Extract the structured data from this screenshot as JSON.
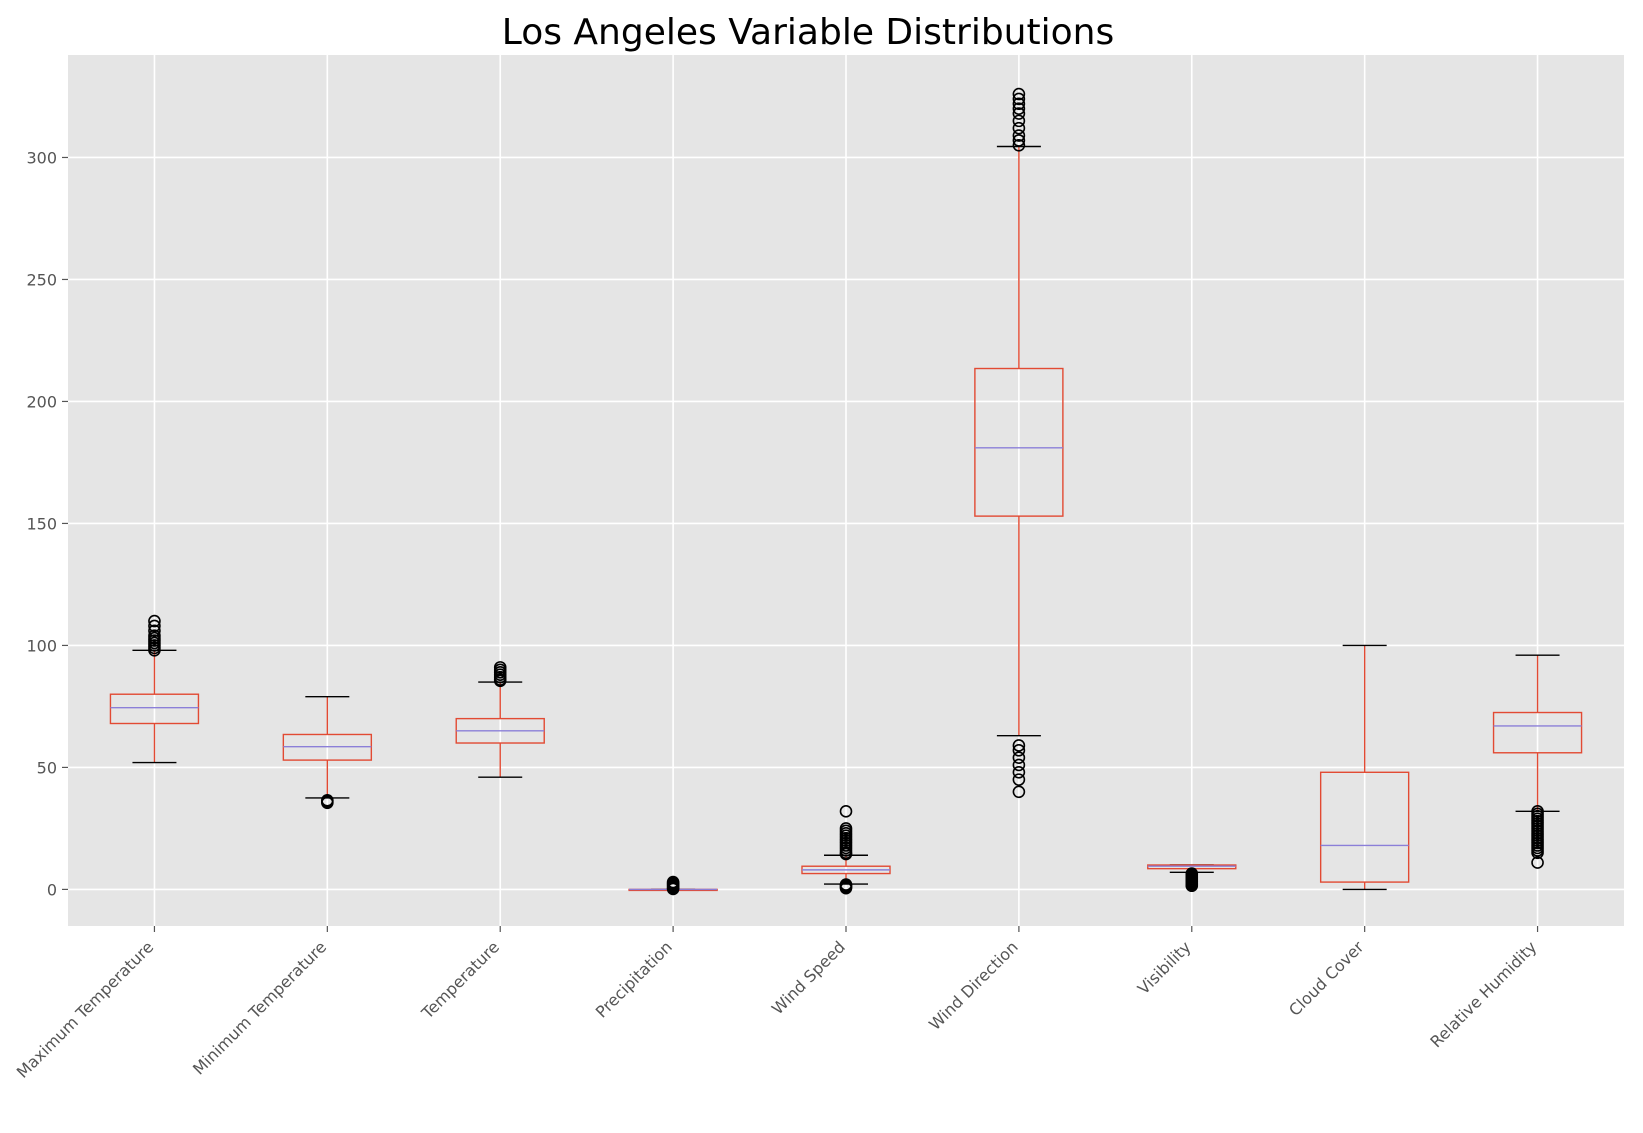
{
  "chart_data": {
    "type": "box",
    "title": "Los Angeles Variable Distributions",
    "xlabel": "",
    "ylabel": "",
    "ylim": [
      -15,
      342
    ],
    "yticks": [
      0,
      50,
      100,
      150,
      200,
      250,
      300
    ],
    "grid": true,
    "legend": "none",
    "colors": {
      "plot_background": "#e5e5e5",
      "grid": "#ffffff",
      "box": "#e24a33",
      "median": "#8b7fd8",
      "cap": "#000000",
      "flier": "#000000",
      "tick_label": "#555555"
    },
    "series": [
      {
        "category": "Maximum Temperature",
        "whisker_low": 52,
        "q1": 68,
        "median": 74.5,
        "q3": 80,
        "whisker_high": 98,
        "outliers": [
          98,
          99,
          100,
          101,
          102,
          103,
          104,
          106,
          108,
          110
        ]
      },
      {
        "category": "Minimum Temperature",
        "whisker_low": 37.5,
        "q1": 53,
        "median": 58.5,
        "q3": 63.5,
        "whisker_high": 79,
        "outliers": [
          35.5,
          36,
          36.5
        ]
      },
      {
        "category": "Temperature",
        "whisker_low": 46,
        "q1": 60,
        "median": 65,
        "q3": 70,
        "whisker_high": 85,
        "outliers": [
          85.5,
          86,
          87,
          88,
          89,
          90,
          91
        ]
      },
      {
        "category": "Precipitation",
        "whisker_low": 0,
        "q1": 0,
        "median": 0,
        "q3": 0,
        "whisker_high": 0,
        "outliers": [
          0.2,
          0.5,
          1,
          1.5,
          2,
          2.5,
          3
        ]
      },
      {
        "category": "Wind Speed",
        "whisker_low": 2.2,
        "q1": 6.5,
        "median": 8,
        "q3": 9.5,
        "whisker_high": 14,
        "outliers": [
          0.5,
          1,
          1.5,
          2,
          14.5,
          15,
          16,
          17,
          18,
          19,
          20,
          21,
          22,
          23,
          24,
          25,
          32
        ]
      },
      {
        "category": "Wind Direction",
        "whisker_low": 63,
        "q1": 153,
        "median": 181,
        "q3": 213.5,
        "whisker_high": 304.5,
        "outliers": [
          40,
          45,
          48,
          51,
          54,
          57,
          59,
          305,
          307,
          309,
          312,
          315,
          318,
          320,
          322,
          324,
          326
        ]
      },
      {
        "category": "Visibility",
        "whisker_low": 7,
        "q1": 8.5,
        "median": 9.5,
        "q3": 10,
        "whisker_high": 10,
        "outliers": [
          1.5,
          2,
          2.5,
          3,
          3.5,
          4,
          4.5,
          5,
          5.5,
          6,
          6.5
        ]
      },
      {
        "category": "Cloud Cover",
        "whisker_low": 0,
        "q1": 3,
        "median": 18,
        "q3": 48,
        "whisker_high": 100,
        "outliers": []
      },
      {
        "category": "Relative Humidity",
        "whisker_low": 32,
        "q1": 56,
        "median": 67,
        "q3": 72.5,
        "whisker_high": 96,
        "outliers": [
          11,
          15,
          16,
          17,
          18,
          19,
          20,
          21,
          22,
          23,
          24,
          25,
          26,
          27,
          28,
          29,
          30,
          31,
          32
        ]
      }
    ]
  }
}
